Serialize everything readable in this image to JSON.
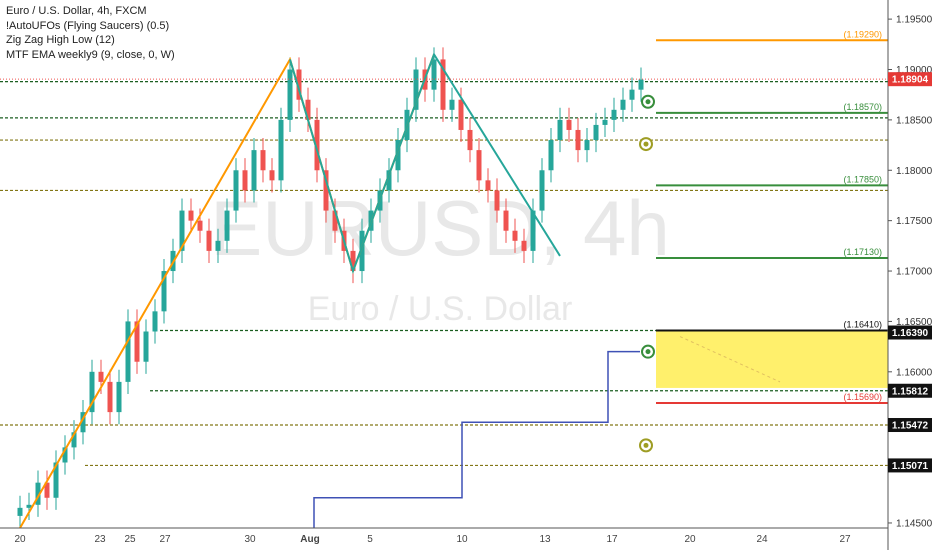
{
  "legend": {
    "line1": "Euro / U.S. Dollar, 4h, FXCM",
    "line2": "!AutoUFOs (Flying Saucers) (0.5)",
    "line3": "Zig Zag High Low (12)",
    "line4": "MTF EMA weekly9 (9, close, 0, W)"
  },
  "watermark": {
    "symbol": "EURUSD, 4h",
    "name": "Euro / U.S. Dollar"
  },
  "colors": {
    "up": "#26a69a",
    "down": "#ef5350",
    "zigzag": "#ff9800",
    "teal_zigzag": "#26a69a",
    "ema": "#3f51b5",
    "zone": "#ffeb3b",
    "green_level": "#388e3c",
    "red_level": "#e53935",
    "dashed_level": "#1b5e20",
    "yellow_dashed": "#827717"
  },
  "chart_data": {
    "type": "candlestick",
    "title": "Euro / U.S. Dollar, 4h, FXCM",
    "ylim": [
      1.1445,
      1.1965
    ],
    "y_ticks": [
      "1.19500",
      "1.19000",
      "1.18500",
      "1.18000",
      "1.17500",
      "1.17000",
      "1.16500",
      "1.16000",
      "1.15500",
      "1.14500"
    ],
    "x_ticks": [
      "20",
      "23",
      "25",
      "27",
      "30",
      "Aug",
      "5",
      "10",
      "13",
      "17",
      "20",
      "24",
      "27"
    ],
    "series_close": [
      1.1465,
      1.1468,
      1.149,
      1.1475,
      1.151,
      1.1525,
      1.154,
      1.156,
      1.16,
      1.159,
      1.156,
      1.159,
      1.165,
      1.161,
      1.164,
      1.166,
      1.17,
      1.172,
      1.176,
      1.175,
      1.174,
      1.172,
      1.173,
      1.176,
      1.18,
      1.178,
      1.182,
      1.18,
      1.179,
      1.185,
      1.19,
      1.187,
      1.185,
      1.18,
      1.176,
      1.174,
      1.172,
      1.17,
      1.174,
      1.176,
      1.178,
      1.18,
      1.183,
      1.186,
      1.19,
      1.188,
      1.191,
      1.186,
      1.187,
      1.184,
      1.182,
      1.179,
      1.178,
      1.176,
      1.174,
      1.173,
      1.172,
      1.176,
      1.18,
      1.183,
      1.185,
      1.184,
      1.182,
      1.183,
      1.1845,
      1.185,
      1.186,
      1.187,
      1.188,
      1.189
    ],
    "zigzag_orange": [
      [
        0,
        1.1445
      ],
      [
        30,
        1.191
      ],
      [
        37,
        1.17
      ],
      [
        46,
        1.1915
      ]
    ],
    "zigzag_teal": [
      [
        30,
        1.191
      ],
      [
        37,
        1.17
      ],
      [
        46,
        1.1915
      ],
      [
        60,
        1.1715
      ]
    ],
    "ema_steps": [
      [
        "Aug 1",
        1.1445
      ],
      [
        "Aug 1",
        1.1475
      ],
      [
        "Aug 10",
        1.1475
      ],
      [
        "Aug 10",
        1.155
      ],
      [
        "Aug 17",
        1.155
      ],
      [
        "Aug 17",
        1.162
      ],
      [
        "Aug 18",
        1.162
      ]
    ],
    "dashed_levels": [
      {
        "value": 1.1888,
        "color": "#1b5e20"
      },
      {
        "value": 1.1852,
        "color": "#1b5e20"
      },
      {
        "value": 1.183,
        "color": "#827717"
      },
      {
        "value": 1.178,
        "color": "#827717"
      },
      {
        "value": 1.1641,
        "color": "#1b5e20"
      },
      {
        "value": 1.15812,
        "color": "#1b5e20"
      },
      {
        "value": 1.15472,
        "color": "#827717"
      },
      {
        "value": 1.15071,
        "color": "#827717"
      }
    ],
    "ufo_levels": [
      {
        "label": "(1.19290)",
        "value": 1.1929,
        "color": "#ff9800"
      },
      {
        "label": "(1.18570)",
        "value": 1.1857,
        "color": "#388e3c"
      },
      {
        "label": "(1.17850)",
        "value": 1.1785,
        "color": "#388e3c"
      },
      {
        "label": "(1.17130)",
        "value": 1.1713,
        "color": "#388e3c"
      },
      {
        "label": "(1.16410)",
        "value": 1.1641,
        "color": "#111111"
      },
      {
        "label": "(1.15690)",
        "value": 1.1569,
        "color": "#e53935"
      }
    ],
    "zone": {
      "from": 1.1641,
      "to": 1.1584
    },
    "price_badges": [
      {
        "label": "1.18904",
        "value": 1.18904,
        "color": "#e53935"
      },
      {
        "label": "1.16390",
        "value": 1.1639,
        "color": "#111111"
      },
      {
        "label": "1.15812",
        "value": 1.15812,
        "color": "#111111"
      },
      {
        "label": "1.15472",
        "value": 1.15472,
        "color": "#111111"
      },
      {
        "label": "1.15071",
        "value": 1.15071,
        "color": "#111111"
      }
    ],
    "ufo_markers": [
      {
        "value": 1.1868,
        "color": "#388e3c"
      },
      {
        "value": 1.1826,
        "color": "#9e9d24"
      },
      {
        "value": 1.162,
        "color": "#388e3c"
      },
      {
        "value": 1.1527,
        "color": "#9e9d24"
      }
    ]
  }
}
